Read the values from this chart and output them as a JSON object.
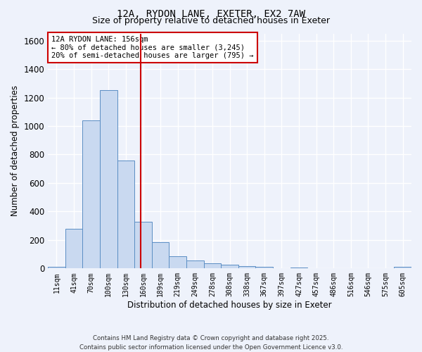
{
  "title_line1": "12A, RYDON LANE, EXETER, EX2 7AW",
  "title_line2": "Size of property relative to detached houses in Exeter",
  "xlabel": "Distribution of detached houses by size in Exeter",
  "ylabel": "Number of detached properties",
  "bar_color": "#c9d9f0",
  "bar_edge_color": "#5b8ec4",
  "background_color": "#eef2fb",
  "grid_color": "#ffffff",
  "categories": [
    "11sqm",
    "41sqm",
    "70sqm",
    "100sqm",
    "130sqm",
    "160sqm",
    "189sqm",
    "219sqm",
    "249sqm",
    "278sqm",
    "308sqm",
    "338sqm",
    "367sqm",
    "397sqm",
    "427sqm",
    "457sqm",
    "486sqm",
    "516sqm",
    "546sqm",
    "575sqm",
    "605sqm"
  ],
  "values": [
    10,
    280,
    1040,
    1250,
    760,
    330,
    185,
    85,
    55,
    35,
    25,
    18,
    12,
    0,
    8,
    0,
    0,
    0,
    0,
    0,
    12
  ],
  "ylim": [
    0,
    1650
  ],
  "yticks": [
    0,
    200,
    400,
    600,
    800,
    1000,
    1200,
    1400,
    1600
  ],
  "vline_color": "#cc0000",
  "annotation_title": "12A RYDON LANE: 156sqm",
  "annotation_line1": "← 80% of detached houses are smaller (3,245)",
  "annotation_line2": "20% of semi-detached houses are larger (795) →",
  "annotation_box_color": "#ffffff",
  "annotation_box_edge": "#cc0000",
  "footer_line1": "Contains HM Land Registry data © Crown copyright and database right 2025.",
  "footer_line2": "Contains public sector information licensed under the Open Government Licence v3.0."
}
